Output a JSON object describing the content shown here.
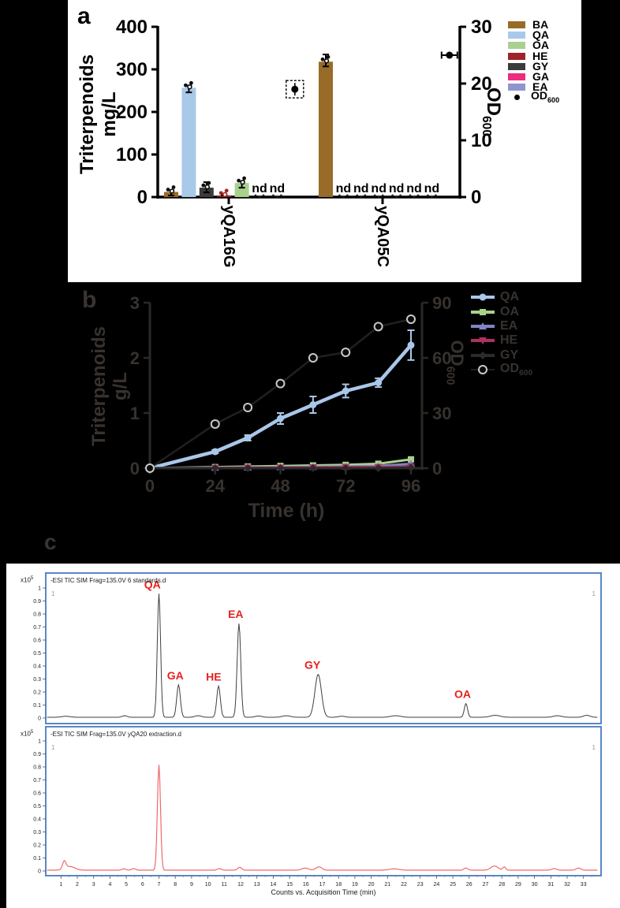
{
  "chart_data": [
    {
      "id": "a",
      "type": "bar",
      "panel_letter": "a",
      "ylabel_left_line1": "Triterpenoids",
      "ylabel_left_line2": "mg/L",
      "ylabel_right": "OD",
      "ylabel_right_sub": "600",
      "y_left_ticks": [
        0,
        100,
        200,
        300,
        400
      ],
      "y_left_max": 400,
      "y_right_ticks": [
        0,
        10,
        20,
        30
      ],
      "y_right_max": 30,
      "nd_text": "nd",
      "groups": [
        {
          "label": "yQA16G",
          "bars": [
            {
              "series": "BA",
              "value_mg_l": 12,
              "err": 4
            },
            {
              "series": "QA",
              "value_mg_l": 257,
              "err": 5
            },
            {
              "series": "GY",
              "value_mg_l": 22,
              "err": 13
            },
            {
              "series": "HE",
              "value_mg_l": 4,
              "err": 2
            },
            {
              "series": "OA",
              "value_mg_l": 33,
              "err": 4
            },
            {
              "series": "GA",
              "nd": true
            },
            {
              "series": "EA",
              "nd": true
            }
          ],
          "od600": 19
        },
        {
          "label": "yQA05C",
          "bars": [
            {
              "series": "BA",
              "value_mg_l": 318,
              "err": 17
            },
            {
              "series": "QA",
              "nd": true
            },
            {
              "series": "OA",
              "nd": true
            },
            {
              "series": "HE",
              "nd": true
            },
            {
              "series": "GY",
              "nd": true
            },
            {
              "series": "GA",
              "nd": true
            },
            {
              "series": "EA",
              "nd": true
            }
          ],
          "od600": 25
        }
      ],
      "series_colors": {
        "BA": "#996b28",
        "QA": "#a9c9e9",
        "OA": "#a9d18e",
        "HE": "#9e2428",
        "GY": "#3b3b3b",
        "GA": "#ec2c7c",
        "EA": "#8e96cd"
      },
      "legend": [
        {
          "label": "BA",
          "color": "#996b28"
        },
        {
          "label": "QA",
          "color": "#a9c9e9"
        },
        {
          "label": "OA",
          "color": "#a9d18e"
        },
        {
          "label": "HE",
          "color": "#9e2428"
        },
        {
          "label": "GY",
          "color": "#3b3b3b"
        },
        {
          "label": "GA",
          "color": "#ec2c7c"
        },
        {
          "label": "EA",
          "color": "#8e96cd"
        },
        {
          "label": "OD",
          "sub": "600",
          "marker": "dot",
          "color": "#000000"
        }
      ]
    },
    {
      "id": "b",
      "type": "line",
      "panel_letter": "b",
      "ylabel_left_line1": "Triterpenoids",
      "ylabel_left_line2": "g/L",
      "ylabel_right": "OD",
      "ylabel_right_sub": "600",
      "xlabel": "Time (h)",
      "x_hours": [
        0,
        24,
        36,
        48,
        60,
        72,
        84,
        96
      ],
      "x_ticks": [
        0,
        24,
        48,
        72,
        96
      ],
      "y_left_ticks": [
        0,
        1,
        2,
        3
      ],
      "y_left_max": 3,
      "y_right_ticks": [
        0,
        30,
        60,
        90
      ],
      "y_right_max": 90,
      "series": [
        {
          "name": "QA",
          "color": "#a9c7e9",
          "marker": "circle",
          "axis": "left",
          "values": [
            0,
            0.3,
            0.55,
            0.9,
            1.15,
            1.4,
            1.55,
            2.23
          ],
          "errors": [
            0,
            0.03,
            0.05,
            0.1,
            0.15,
            0.12,
            0.08,
            0.27
          ]
        },
        {
          "name": "OA",
          "color": "#a9d18e",
          "marker": "square",
          "axis": "left",
          "values": [
            0,
            0.02,
            0.03,
            0.04,
            0.05,
            0.06,
            0.08,
            0.16
          ]
        },
        {
          "name": "EA",
          "color": "#8184c4",
          "marker": "triangle",
          "axis": "left",
          "values": [
            0,
            0.01,
            0.015,
            0.02,
            0.025,
            0.03,
            0.04,
            0.08
          ]
        },
        {
          "name": "HE",
          "color": "#a93263",
          "marker": "triangle-down",
          "axis": "left",
          "values": [
            0,
            0.005,
            0.01,
            0.01,
            0.015,
            0.02,
            0.02,
            0.03
          ]
        },
        {
          "name": "GY",
          "color": "#2b2b2b",
          "marker": "diamond",
          "axis": "left",
          "values": [
            0,
            0,
            0,
            0,
            0,
            0,
            0,
            0.01
          ]
        },
        {
          "name": "OD",
          "sub": "600",
          "color": "#231f1d",
          "marker": "open-circle",
          "axis": "right",
          "values": [
            0,
            24,
            33,
            46,
            60,
            63,
            77,
            81
          ]
        }
      ]
    },
    {
      "id": "c1",
      "type": "line",
      "subtype": "chromatogram",
      "panel_letter": "c",
      "title": "-ESI TIC SIM Frag=135.0V 6 standards.d",
      "scale_label": "x10",
      "scale_exp": "5",
      "corner_mark": "1",
      "y_tick_labels": [
        "1",
        "0.9",
        "0.8",
        "0.7",
        "0.6",
        "0.5",
        "0.4",
        "0.3",
        "0.2",
        "0.1",
        "0"
      ],
      "line_color": "#3f3f3f",
      "peaks": [
        {
          "m": 1.3,
          "h": 0.008,
          "w": 0.25
        },
        {
          "m": 4.9,
          "h": 0.012,
          "w": 0.15
        },
        {
          "m": 7.0,
          "h": 0.95,
          "w": 0.1
        },
        {
          "m": 8.2,
          "h": 0.25,
          "w": 0.11
        },
        {
          "m": 9.4,
          "h": 0.012,
          "w": 0.2
        },
        {
          "m": 10.65,
          "h": 0.24,
          "w": 0.11
        },
        {
          "m": 11.9,
          "h": 0.72,
          "w": 0.11
        },
        {
          "m": 13.1,
          "h": 0.01,
          "w": 0.2
        },
        {
          "m": 14.8,
          "h": 0.012,
          "w": 0.25
        },
        {
          "m": 16.75,
          "h": 0.33,
          "w": 0.2
        },
        {
          "m": 18.2,
          "h": 0.008,
          "w": 0.2
        },
        {
          "m": 21.5,
          "h": 0.012,
          "w": 0.3
        },
        {
          "m": 25.8,
          "h": 0.105,
          "w": 0.1
        },
        {
          "m": 27.6,
          "h": 0.015,
          "w": 0.3
        },
        {
          "m": 31.4,
          "h": 0.012,
          "w": 0.25
        },
        {
          "m": 33.2,
          "h": 0.015,
          "w": 0.2
        }
      ],
      "peak_labels": [
        {
          "text": "QA",
          "m": 6.6,
          "v": 0.95
        },
        {
          "text": "GA",
          "m": 8.0,
          "v": 0.25
        },
        {
          "text": "HE",
          "m": 10.35,
          "v": 0.24
        },
        {
          "text": "EA",
          "m": 11.7,
          "v": 0.72
        },
        {
          "text": "GY",
          "m": 16.4,
          "v": 0.33
        },
        {
          "text": "OA",
          "m": 25.6,
          "v": 0.105
        }
      ],
      "peak_label_color": "#e8211d"
    },
    {
      "id": "c2",
      "type": "line",
      "subtype": "chromatogram",
      "title": "-ESI TIC SIM Frag=135.0V yQA20 extraction.d",
      "scale_label": "x10",
      "scale_exp": "5",
      "corner_mark": "1",
      "y_tick_labels": [
        "1",
        "0.9",
        "0.8",
        "0.7",
        "0.6",
        "0.5",
        "0.4",
        "0.3",
        "0.2",
        "0.1",
        "0"
      ],
      "x_tick_labels": [
        1,
        2,
        3,
        4,
        5,
        6,
        7,
        8,
        9,
        10,
        11,
        12,
        13,
        14,
        15,
        16,
        17,
        18,
        19,
        20,
        21,
        22,
        23,
        24,
        25,
        26,
        27,
        28,
        29,
        30,
        31,
        32,
        33
      ],
      "xlabel": "Counts vs. Acquisition Time (min)",
      "line_color": "#ef6a6a",
      "peaks": [
        {
          "m": 1.2,
          "h": 0.06,
          "w": 0.1
        },
        {
          "m": 1.55,
          "h": 0.028,
          "w": 0.3
        },
        {
          "m": 4.85,
          "h": 0.01,
          "w": 0.12
        },
        {
          "m": 5.45,
          "h": 0.012,
          "w": 0.12
        },
        {
          "m": 7.0,
          "h": 0.81,
          "w": 0.095
        },
        {
          "m": 10.7,
          "h": 0.012,
          "w": 0.12
        },
        {
          "m": 11.95,
          "h": 0.022,
          "w": 0.12
        },
        {
          "m": 15.95,
          "h": 0.016,
          "w": 0.2
        },
        {
          "m": 16.8,
          "h": 0.026,
          "w": 0.18
        },
        {
          "m": 21.4,
          "h": 0.01,
          "w": 0.3
        },
        {
          "m": 25.8,
          "h": 0.016,
          "w": 0.12
        },
        {
          "m": 27.55,
          "h": 0.032,
          "w": 0.22
        },
        {
          "m": 28.15,
          "h": 0.025,
          "w": 0.09
        },
        {
          "m": 31.2,
          "h": 0.012,
          "w": 0.15
        },
        {
          "m": 32.7,
          "h": 0.016,
          "w": 0.15
        }
      ]
    }
  ]
}
